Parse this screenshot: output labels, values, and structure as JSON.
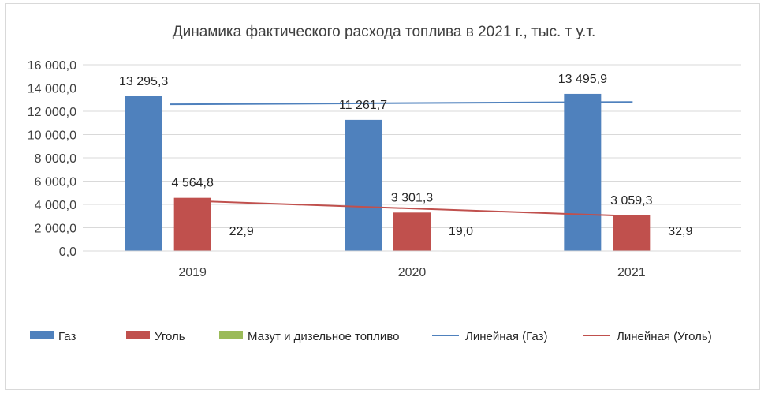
{
  "chart_data": {
    "type": "bar",
    "title": "Динамика фактического расхода топлива в 2021 г., тыс. т у.т.",
    "categories": [
      "2019",
      "2020",
      "2021"
    ],
    "ylim": [
      0,
      16000
    ],
    "yticks": [
      0,
      2000,
      4000,
      6000,
      8000,
      10000,
      12000,
      14000,
      16000
    ],
    "ytick_labels": [
      "0,0",
      "2 000,0",
      "4 000,0",
      "6 000,0",
      "8 000,0",
      "10 000,0",
      "12 000,0",
      "14 000,0",
      "16 000,0"
    ],
    "grid": true,
    "legend_position": "bottom",
    "series": [
      {
        "name": "Газ",
        "color": "#4f81bd",
        "values": [
          13295.3,
          11261.7,
          13495.9
        ],
        "labels": [
          "13 295,3",
          "11 261,7",
          "13 495,9"
        ]
      },
      {
        "name": "Уголь",
        "color": "#c0504d",
        "values": [
          4564.8,
          3301.3,
          3059.3
        ],
        "labels": [
          "4 564,8",
          "3 301,3",
          "3 059,3"
        ]
      },
      {
        "name": "Мазут и дизельное топливо",
        "color": "#9bbb59",
        "values": [
          22.9,
          19.0,
          32.9
        ],
        "labels": [
          "22,9",
          "19,0",
          "32,9"
        ]
      }
    ],
    "trendlines": [
      {
        "name": "Линейная (Газ)",
        "color": "#4f81bd",
        "values": [
          12600,
          12700,
          12800
        ]
      },
      {
        "name": "Линейная (Уголь)",
        "color": "#c0504d",
        "values": [
          4300,
          3700,
          3000
        ]
      }
    ]
  }
}
